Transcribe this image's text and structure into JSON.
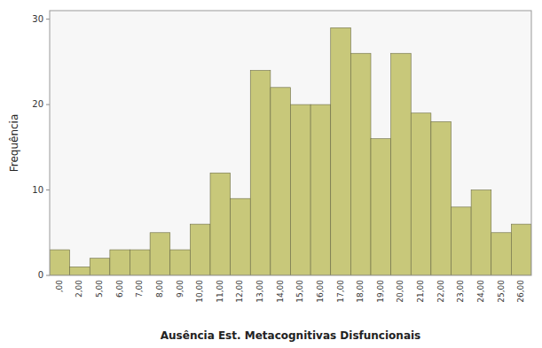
{
  "chart_data": {
    "type": "bar",
    "xlabel": "Ausência Est. Metacognitivas Disfuncionais",
    "ylabel": "Frequência",
    "categories": [
      ",00",
      "2,00",
      "5,00",
      "6,00",
      "7,00",
      "8,00",
      "9,00",
      "10,00",
      "11,00",
      "12,00",
      "13,00",
      "14,00",
      "15,00",
      "16,00",
      "17,00",
      "18,00",
      "19,00",
      "20,00",
      "21,00",
      "22,00",
      "23,00",
      "24,00",
      "25,00",
      "26,00"
    ],
    "values": [
      3,
      1,
      2,
      3,
      3,
      5,
      3,
      6,
      12,
      9,
      24,
      22,
      20,
      20,
      29,
      26,
      16,
      26,
      19,
      18,
      8,
      10,
      5,
      6
    ],
    "color": "#c8c87a",
    "ylim": [
      0,
      31
    ],
    "yticks": [
      0,
      10,
      20,
      30
    ],
    "grid": false
  }
}
